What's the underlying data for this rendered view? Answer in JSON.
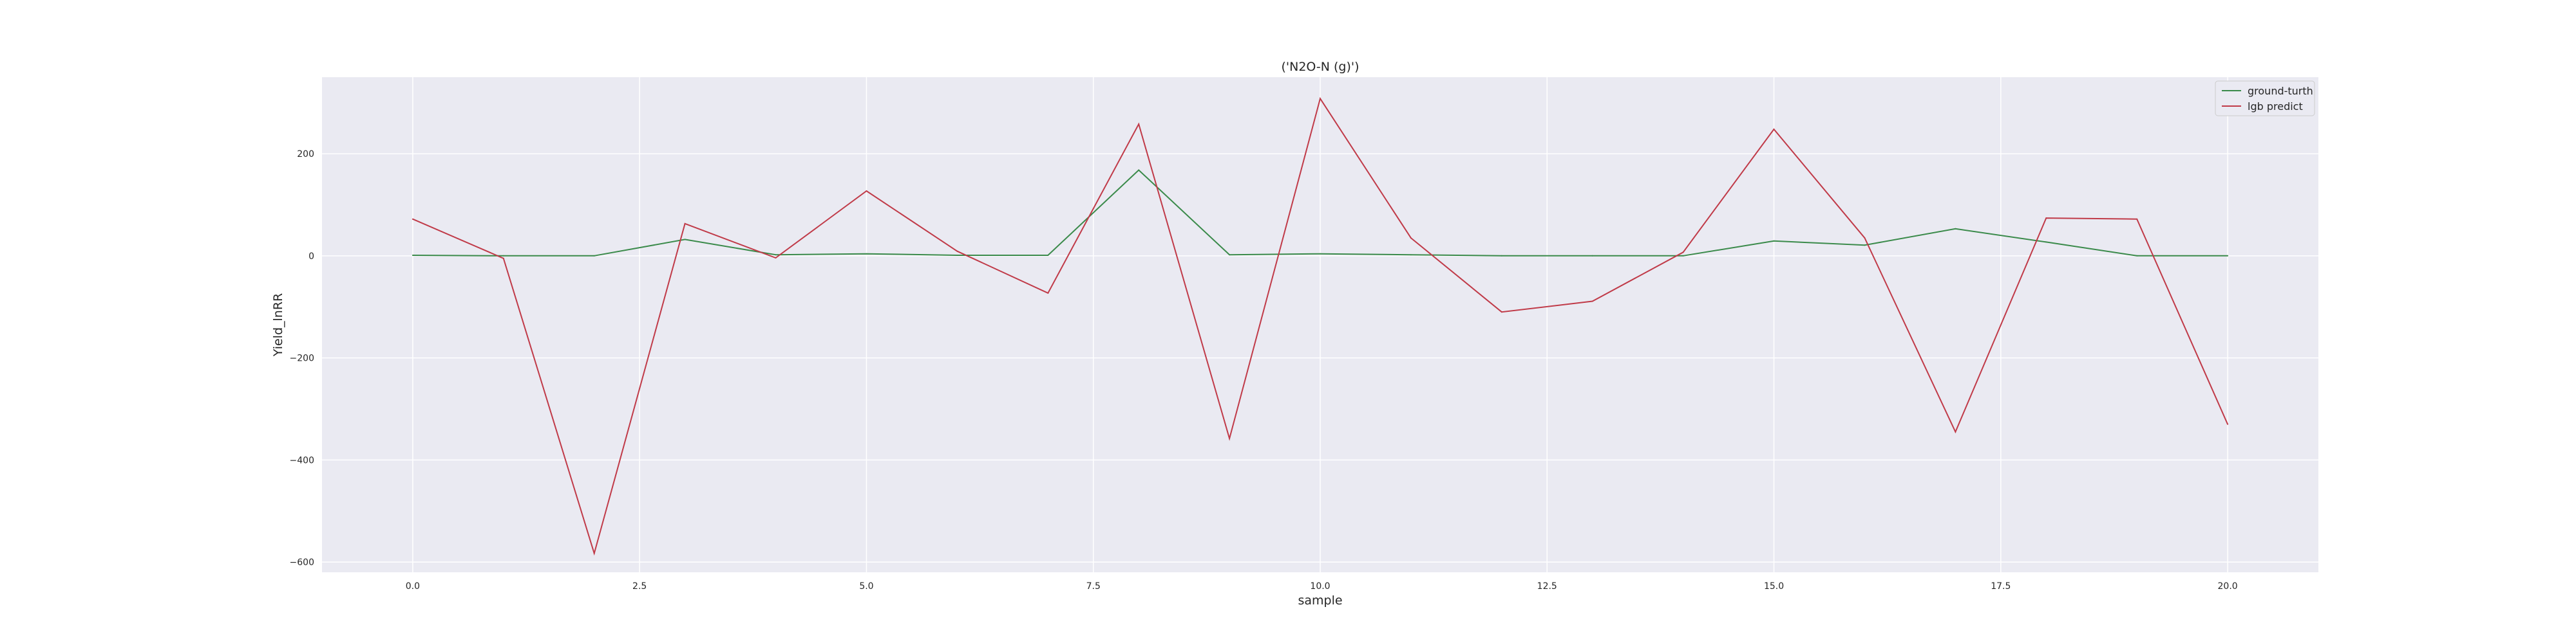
{
  "chart_data": {
    "type": "line",
    "title": "('N2O-N (g)')",
    "xlabel": "sample",
    "ylabel": "Yield_lnRR",
    "xlim": [
      -1.0,
      21.0
    ],
    "ylim": [
      -620,
      350
    ],
    "xticks": [
      0.0,
      2.5,
      5.0,
      7.5,
      10.0,
      12.5,
      15.0,
      17.5,
      20.0
    ],
    "xtick_labels": [
      "0.0",
      "2.5",
      "5.0",
      "7.5",
      "10.0",
      "12.5",
      "15.0",
      "17.5",
      "20.0"
    ],
    "yticks": [
      -600,
      -400,
      -200,
      0,
      200
    ],
    "ytick_labels": [
      "−600",
      "−400",
      "−200",
      "0",
      "200"
    ],
    "grid": true,
    "legend_position": "top-right",
    "x": [
      0,
      1,
      2,
      3,
      4,
      5,
      6,
      7,
      8,
      9,
      10,
      11,
      12,
      13,
      14,
      15,
      16,
      17,
      18,
      19,
      20
    ],
    "series": [
      {
        "name": "ground-turth",
        "color": "#3a8a4a",
        "values": [
          1,
          0,
          0,
          32,
          2,
          4,
          1,
          1,
          168,
          2,
          4,
          2,
          0,
          0,
          0,
          29,
          21,
          53,
          27,
          0,
          0
        ]
      },
      {
        "name": "lgb predict",
        "color": "#c03a48",
        "values": [
          72,
          -5,
          -583,
          63,
          -4,
          127,
          9,
          -73,
          258,
          -358,
          308,
          35,
          -110,
          -89,
          7,
          248,
          35,
          -345,
          74,
          72,
          -330
        ]
      }
    ]
  },
  "colors": {
    "plot_background": "#eaeaf2",
    "grid": "#ffffff",
    "text": "#262626"
  }
}
